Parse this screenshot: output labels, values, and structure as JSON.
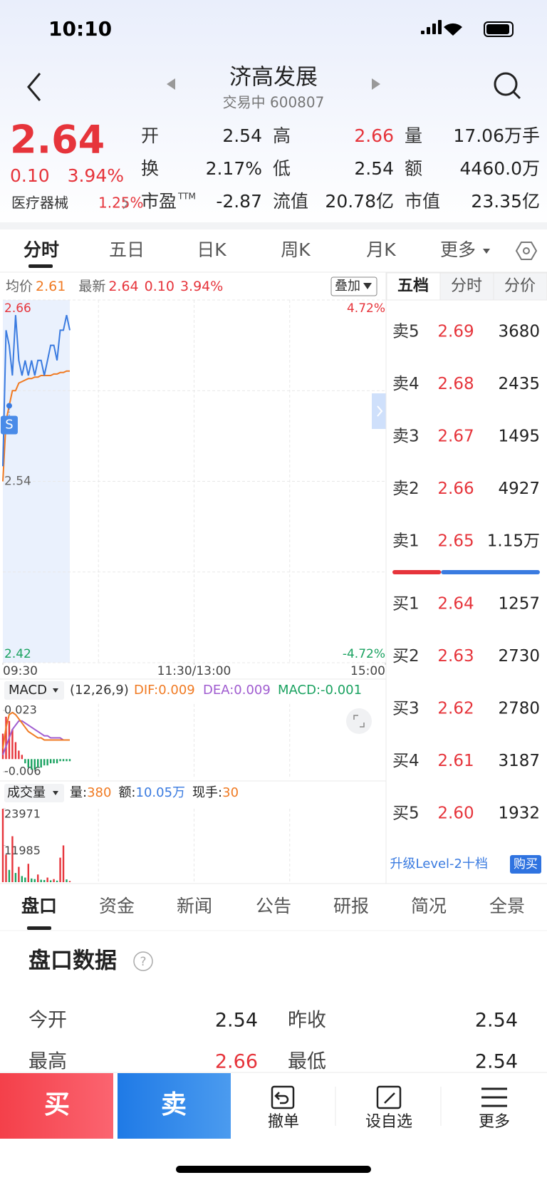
{
  "status": {
    "time": "10:10"
  },
  "header": {
    "title": "济高发展",
    "subtitle": "交易中 600807"
  },
  "quote": {
    "price": "2.64",
    "change": "0.10",
    "change_pct": "3.94%",
    "sector": "医疗器械",
    "sector_pct": "1.25%",
    "fields": [
      {
        "label": "开",
        "value": "2.54",
        "color": "#222222"
      },
      {
        "label": "高",
        "value": "2.66",
        "color": "#e6343b"
      },
      {
        "label": "量",
        "value": "17.06万手",
        "color": "#222222"
      },
      {
        "label": "换",
        "value": "2.17%",
        "color": "#222222"
      },
      {
        "label": "低",
        "value": "2.54",
        "color": "#222222"
      },
      {
        "label": "额",
        "value": "4460.0万",
        "color": "#222222"
      },
      {
        "label": "市盈",
        "sup": "TTM",
        "value": "-2.87",
        "color": "#222222"
      },
      {
        "label": "流值",
        "value": "20.78亿",
        "color": "#222222"
      },
      {
        "label": "市值",
        "value": "23.35亿",
        "color": "#222222"
      }
    ]
  },
  "tabs": [
    "分时",
    "五日",
    "日K",
    "周K",
    "月K",
    "更多"
  ],
  "info": {
    "avg_label": "均价",
    "avg": "2.61",
    "last_label": "最新",
    "last": "2.64",
    "change": "0.10",
    "change_pct": "3.94%",
    "overlay": "叠加"
  },
  "chart_data": [
    {
      "type": "line",
      "x": [
        0,
        2,
        4,
        6,
        8,
        10,
        12,
        14,
        16,
        18,
        20,
        22,
        24,
        26,
        28,
        30,
        32,
        34,
        36,
        38,
        40,
        42
      ],
      "xlim": [
        0,
        240
      ],
      "xticks": [
        {
          "value": 0,
          "label": "09:30"
        },
        {
          "value": 120,
          "label": "11:30/13:00"
        },
        {
          "value": 240,
          "label": "15:00"
        }
      ],
      "ylim": [
        2.42,
        2.66
      ],
      "yticks": [
        2.42,
        2.54,
        2.66
      ],
      "y2lim": [
        -4.72,
        4.72
      ],
      "y2ticks": [
        {
          "value": -4.72,
          "label": "-4.72%"
        },
        {
          "value": 4.72,
          "label": "4.72%"
        }
      ],
      "series": [
        {
          "color": "#3a7be0",
          "values": [
            2.55,
            2.64,
            2.63,
            2.61,
            2.65,
            2.62,
            2.61,
            2.62,
            2.61,
            2.62,
            2.61,
            2.62,
            2.62,
            2.61,
            2.62,
            2.63,
            2.63,
            2.62,
            2.64,
            2.64,
            2.65,
            2.64
          ]
        },
        {
          "color": "#f07a22",
          "values": [
            2.54,
            2.58,
            2.59,
            2.6,
            2.6,
            2.605,
            2.606,
            2.607,
            2.608,
            2.608,
            2.609,
            2.609,
            2.61,
            2.61,
            2.61,
            2.61,
            2.611,
            2.611,
            2.612,
            2.612,
            2.613,
            2.613
          ]
        }
      ]
    },
    {
      "type": "macd",
      "title": "MACD",
      "params": "(12,26,9)",
      "dif_label": "DIF:0.009",
      "dea_label": "DEA:0.009",
      "macd_label": "MACD:-0.001",
      "x": [
        0,
        2,
        4,
        6,
        8,
        10,
        12,
        14,
        16,
        18,
        20,
        22,
        24,
        26,
        28,
        30,
        32,
        34,
        36,
        38,
        40,
        42
      ],
      "xlim": [
        0,
        240
      ],
      "ylim": [
        -0.009,
        0.026
      ],
      "yticks": [
        -0.006,
        0.023
      ],
      "series": [
        {
          "color": "#f07a22",
          "values": [
            0.005,
            0.015,
            0.021,
            0.022,
            0.021,
            0.019,
            0.017,
            0.015,
            0.013,
            0.012,
            0.011,
            0.01,
            0.01,
            0.009,
            0.009,
            0.009,
            0.009,
            0.009,
            0.009,
            0.009,
            0.009,
            0.009
          ]
        },
        {
          "color": "#a05cd0",
          "values": [
            0.002,
            0.006,
            0.01,
            0.014,
            0.016,
            0.018,
            0.018,
            0.017,
            0.016,
            0.015,
            0.014,
            0.013,
            0.012,
            0.011,
            0.011,
            0.01,
            0.01,
            0.01,
            0.01,
            0.009,
            0.009,
            0.009
          ]
        }
      ],
      "histogram": [
        0.012,
        0.02,
        0.018,
        0.014,
        0.008,
        0.004,
        0.002,
        -0.002,
        -0.004,
        -0.005,
        -0.005,
        -0.004,
        -0.004,
        -0.003,
        -0.003,
        -0.002,
        -0.002,
        -0.002,
        -0.001,
        -0.001,
        -0.001,
        -0.001
      ],
      "up_color": "#e6343b",
      "down_color": "#1aa260"
    },
    {
      "type": "bar",
      "title": "成交量",
      "summary": [
        {
          "text": "量:",
          "color": "#222222"
        },
        {
          "text": "380",
          "color": "#f07a22"
        },
        {
          "text": "额:",
          "color": "#222222"
        },
        {
          "text": "10.05万",
          "color": "#3a7be0"
        },
        {
          "text": "现手:",
          "color": "#222222"
        },
        {
          "text": "30",
          "color": "#f07a22"
        }
      ],
      "x": [
        0,
        2,
        4,
        6,
        8,
        10,
        12,
        14,
        16,
        18,
        20,
        22,
        24,
        26,
        28,
        30,
        32,
        34,
        36,
        38,
        40,
        42
      ],
      "xlim": [
        0,
        240
      ],
      "ylim": [
        0,
        23971
      ],
      "yticks": [
        11985,
        23971
      ],
      "values": [
        23971,
        9000,
        4000,
        15000,
        3000,
        5000,
        2000,
        1500,
        6000,
        1200,
        1000,
        2500,
        800,
        700,
        1500,
        600,
        1000,
        500,
        8000,
        12000,
        900,
        380
      ],
      "colors": [
        "#e6343b",
        "#e6343b",
        "#1aa260",
        "#e6343b",
        "#1aa260",
        "#e6343b",
        "#1aa260",
        "#1aa260",
        "#e6343b",
        "#1aa260",
        "#1aa260",
        "#e6343b",
        "#1aa260",
        "#1aa260",
        "#e6343b",
        "#1aa260",
        "#e6343b",
        "#1aa260",
        "#e6343b",
        "#e6343b",
        "#1aa260",
        "#e6343b"
      ]
    }
  ],
  "order_book": {
    "tabs": [
      "五档",
      "分时",
      "分价"
    ],
    "asks": [
      {
        "label": "卖5",
        "price": "2.69",
        "volume": "3680"
      },
      {
        "label": "卖4",
        "price": "2.68",
        "volume": "2435"
      },
      {
        "label": "卖3",
        "price": "2.67",
        "volume": "1495"
      },
      {
        "label": "卖2",
        "price": "2.66",
        "volume": "4927"
      },
      {
        "label": "卖1",
        "price": "2.65",
        "volume": "1.15万"
      }
    ],
    "red_ratio": 0.33,
    "bids": [
      {
        "label": "买1",
        "price": "2.64",
        "volume": "1257"
      },
      {
        "label": "买2",
        "price": "2.63",
        "volume": "2730"
      },
      {
        "label": "买3",
        "price": "2.62",
        "volume": "2780"
      },
      {
        "label": "买4",
        "price": "2.61",
        "volume": "3187"
      },
      {
        "label": "买5",
        "price": "2.60",
        "volume": "1932"
      }
    ],
    "upgrade": "升级Level-2十档",
    "buy_button": "购买"
  },
  "bottom_tabs": [
    "盘口",
    "资金",
    "新闻",
    "公告",
    "研报",
    "简况",
    "全景"
  ],
  "panel": {
    "title": "盘口数据",
    "rows": [
      [
        {
          "label": "今开",
          "value": "2.54",
          "color": "#222222"
        },
        {
          "label": "昨收",
          "value": "2.54",
          "color": "#222222"
        }
      ],
      [
        {
          "label": "最高",
          "value": "2.66",
          "color": "#e6343b"
        },
        {
          "label": "最低",
          "value": "2.54",
          "color": "#222222"
        }
      ]
    ]
  },
  "actions": {
    "buy": "买",
    "sell": "卖",
    "items": [
      "撤单",
      "设自选",
      "更多"
    ]
  }
}
